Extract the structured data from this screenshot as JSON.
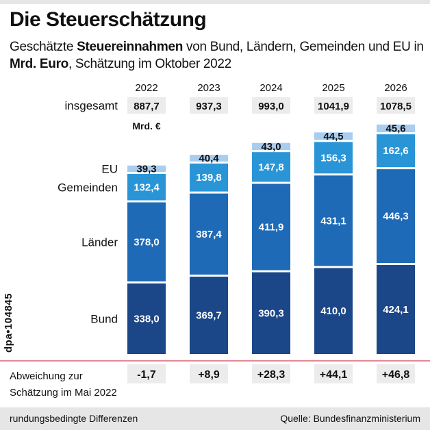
{
  "title": "Die Steuerschätzung",
  "subtitle": {
    "part1": "Geschätzte ",
    "bold1": "Steuereinnahmen",
    "part2": " von Bund, Ländern, Gemeinden und EU in ",
    "bold2": "Mrd. Euro",
    "part3": ", Schätzung im Oktober 2022"
  },
  "chart_data": {
    "type": "bar",
    "stacked": true,
    "unit_label": "Mrd. €",
    "categories": [
      "2022",
      "2023",
      "2024",
      "2025",
      "2026"
    ],
    "series": [
      {
        "name": "Bund",
        "values": [
          338.0,
          369.7,
          390.3,
          410.0,
          424.1
        ],
        "labels": [
          "338,0",
          "369,7",
          "390,3",
          "410,0",
          "424,1"
        ],
        "color": "#1b4687"
      },
      {
        "name": "Länder",
        "values": [
          378.0,
          387.4,
          411.9,
          431.1,
          446.3
        ],
        "labels": [
          "378,0",
          "387,4",
          "411,9",
          "431,1",
          "446,3"
        ],
        "color": "#1e6ab6"
      },
      {
        "name": "Gemeinden",
        "values": [
          132.4,
          139.8,
          147.8,
          156.3,
          162.6
        ],
        "labels": [
          "132,4",
          "139,8",
          "147,8",
          "156,3",
          "162,6"
        ],
        "color": "#2a95d6"
      },
      {
        "name": "EU",
        "values": [
          39.3,
          40.4,
          43.0,
          44.5,
          45.6
        ],
        "labels": [
          "39,3",
          "40,4",
          "43,0",
          "44,5",
          "45,6"
        ],
        "color": "#a8cdef"
      }
    ],
    "totals_label": "insgesamt",
    "totals": [
      "887,7",
      "937,3",
      "993,0",
      "1041,9",
      "1078,5"
    ],
    "deviation_label": "Abweichung zur Schätzung im Mai 2022",
    "deviation": [
      "-1,7",
      "+8,9",
      "+28,3",
      "+44,1",
      "+46,8"
    ]
  },
  "footer": {
    "note": "rundungsbedingte Differenzen",
    "source": "Quelle: Bundesfinanzministerium"
  },
  "credit": "dpa•104845"
}
